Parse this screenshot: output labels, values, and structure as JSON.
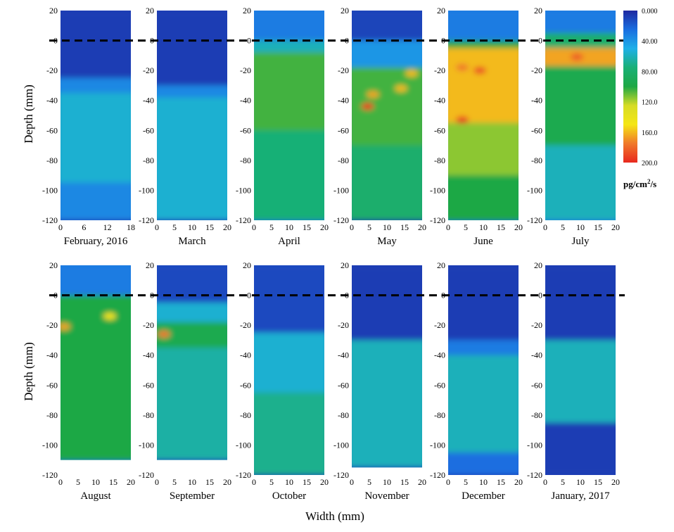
{
  "chart_data": {
    "type": "heatmap",
    "xlabel": "Width (mm)",
    "ylabel": "Depth (mm)",
    "ylim": [
      -120,
      20
    ],
    "surface_depth": 0,
    "colorbar": {
      "ticks": [
        "0.000",
        "40.00",
        "80.00",
        "120.0",
        "160.0",
        "200.0"
      ],
      "range": [
        0,
        200
      ],
      "units_base": "pg/cm",
      "units_sup": "2",
      "units_tail": "/s",
      "colors": [
        "#1e28a0",
        "#1a6ee0",
        "#1fb0e8",
        "#19b076",
        "#1ea845",
        "#d6dc25",
        "#f5e614",
        "#f0782a",
        "#e8281e"
      ]
    },
    "rows": [
      {
        "panels": [
          {
            "label": "February, 2016",
            "xlim": [
              0,
              18
            ],
            "xticks": [
              "0",
              "6",
              "12",
              "18"
            ],
            "ymin": -120,
            "bands": [
              {
                "top": 20,
                "bottom": -25,
                "value": 8
              },
              {
                "top": -25,
                "bottom": -35,
                "value": 35
              },
              {
                "top": -35,
                "bottom": -95,
                "value": 55
              },
              {
                "top": -95,
                "bottom": -120,
                "value": 35
              }
            ],
            "spots": []
          },
          {
            "label": "March",
            "xlim": [
              0,
              20
            ],
            "xticks": [
              "0",
              "5",
              "10",
              "15",
              "20"
            ],
            "ymin": -120,
            "bands": [
              {
                "top": 20,
                "bottom": -30,
                "value": 8
              },
              {
                "top": -30,
                "bottom": -38,
                "value": 35
              },
              {
                "top": -38,
                "bottom": -120,
                "value": 55
              }
            ],
            "spots": []
          },
          {
            "label": "April",
            "xlim": [
              0,
              20
            ],
            "xticks": [
              "0",
              "5",
              "10",
              "15",
              "20"
            ],
            "ymin": -120,
            "bands": [
              {
                "top": 20,
                "bottom": 0,
                "value": 30
              },
              {
                "top": 0,
                "bottom": -8,
                "value": 60
              },
              {
                "top": -8,
                "bottom": -60,
                "value": 105
              },
              {
                "top": -60,
                "bottom": -120,
                "value": 75
              }
            ],
            "spots": []
          },
          {
            "label": "May",
            "xlim": [
              0,
              20
            ],
            "xticks": [
              "0",
              "5",
              "10",
              "15",
              "20"
            ],
            "ymin": -120,
            "bands": [
              {
                "top": 20,
                "bottom": 0,
                "value": 10
              },
              {
                "top": 0,
                "bottom": -18,
                "value": 40
              },
              {
                "top": -18,
                "bottom": -70,
                "value": 105
              },
              {
                "top": -70,
                "bottom": -120,
                "value": 80
              }
            ],
            "spots": [
              {
                "x": 4.5,
                "y": -44,
                "value": 195
              },
              {
                "x": 6,
                "y": -36,
                "value": 165
              },
              {
                "x": 14,
                "y": -32,
                "value": 160
              },
              {
                "x": 17,
                "y": -22,
                "value": 160
              }
            ]
          },
          {
            "label": "June",
            "xlim": [
              0,
              20
            ],
            "xticks": [
              "0",
              "5",
              "10",
              "15",
              "20"
            ],
            "ymin": -120,
            "bands": [
              {
                "top": 20,
                "bottom": 0,
                "value": 30
              },
              {
                "top": 0,
                "bottom": -5,
                "value": 100
              },
              {
                "top": -5,
                "bottom": -55,
                "value": 160
              },
              {
                "top": -55,
                "bottom": -90,
                "value": 115
              },
              {
                "top": -90,
                "bottom": -120,
                "value": 100
              }
            ],
            "spots": [
              {
                "x": 9,
                "y": -20,
                "value": 190
              },
              {
                "x": 4,
                "y": -18,
                "value": 175
              },
              {
                "x": 4,
                "y": -53,
                "value": 195
              }
            ]
          },
          {
            "label": "July",
            "xlim": [
              0,
              20
            ],
            "xticks": [
              "0",
              "5",
              "10",
              "15",
              "20"
            ],
            "ymin": -120,
            "bands": [
              {
                "top": 20,
                "bottom": 5,
                "value": 30
              },
              {
                "top": 5,
                "bottom": -5,
                "value": 80
              },
              {
                "top": -5,
                "bottom": -17,
                "value": 165
              },
              {
                "top": -17,
                "bottom": -70,
                "value": 95
              },
              {
                "top": -70,
                "bottom": -120,
                "value": 60
              }
            ],
            "spots": [
              {
                "x": 9,
                "y": -11,
                "value": 185
              }
            ]
          }
        ]
      },
      {
        "panels": [
          {
            "label": "August",
            "xlim": [
              0,
              20
            ],
            "xticks": [
              "0",
              "5",
              "10",
              "15",
              "20"
            ],
            "ymin": -110,
            "bands": [
              {
                "top": 20,
                "bottom": 0,
                "value": 30
              },
              {
                "top": 0,
                "bottom": -110,
                "value": 100
              }
            ],
            "spots": [
              {
                "x": 1,
                "y": -21,
                "value": 165
              },
              {
                "x": 14,
                "y": -14,
                "value": 150
              }
            ]
          },
          {
            "label": "September",
            "xlim": [
              0,
              20
            ],
            "xticks": [
              "0",
              "5",
              "10",
              "15",
              "20"
            ],
            "ymin": -110,
            "bands": [
              {
                "top": 20,
                "bottom": -5,
                "value": 12
              },
              {
                "top": -5,
                "bottom": -18,
                "value": 55
              },
              {
                "top": -18,
                "bottom": -35,
                "value": 95
              },
              {
                "top": -35,
                "bottom": -110,
                "value": 65
              }
            ],
            "spots": [
              {
                "x": 2,
                "y": -26,
                "value": 175
              }
            ]
          },
          {
            "label": "October",
            "xlim": [
              0,
              20
            ],
            "xticks": [
              "0",
              "5",
              "10",
              "15",
              "20"
            ],
            "ymin": -120,
            "bands": [
              {
                "top": 20,
                "bottom": -25,
                "value": 12
              },
              {
                "top": -25,
                "bottom": -65,
                "value": 55
              },
              {
                "top": -65,
                "bottom": -120,
                "value": 70
              }
            ],
            "spots": []
          },
          {
            "label": "November",
            "xlim": [
              0,
              20
            ],
            "xticks": [
              "0",
              "5",
              "10",
              "15",
              "20"
            ],
            "ymin": -115,
            "bands": [
              {
                "top": 20,
                "bottom": -30,
                "value": 8
              },
              {
                "top": -30,
                "bottom": -115,
                "value": 60
              }
            ],
            "spots": []
          },
          {
            "label": "December",
            "xlim": [
              0,
              20
            ],
            "xticks": [
              "0",
              "5",
              "10",
              "15",
              "20"
            ],
            "ymin": -120,
            "bands": [
              {
                "top": 20,
                "bottom": -30,
                "value": 8
              },
              {
                "top": -30,
                "bottom": -40,
                "value": 30
              },
              {
                "top": -40,
                "bottom": -105,
                "value": 60
              },
              {
                "top": -105,
                "bottom": -120,
                "value": 25
              }
            ],
            "spots": []
          },
          {
            "label": "January, 2017",
            "xlim": [
              0,
              20
            ],
            "xticks": [
              "0",
              "5",
              "10",
              "15",
              "20"
            ],
            "ymin": -120,
            "bands": [
              {
                "top": 20,
                "bottom": -30,
                "value": 8
              },
              {
                "top": -30,
                "bottom": -85,
                "value": 60
              },
              {
                "top": -85,
                "bottom": -120,
                "value": 8
              }
            ],
            "spots": []
          }
        ]
      }
    ]
  }
}
